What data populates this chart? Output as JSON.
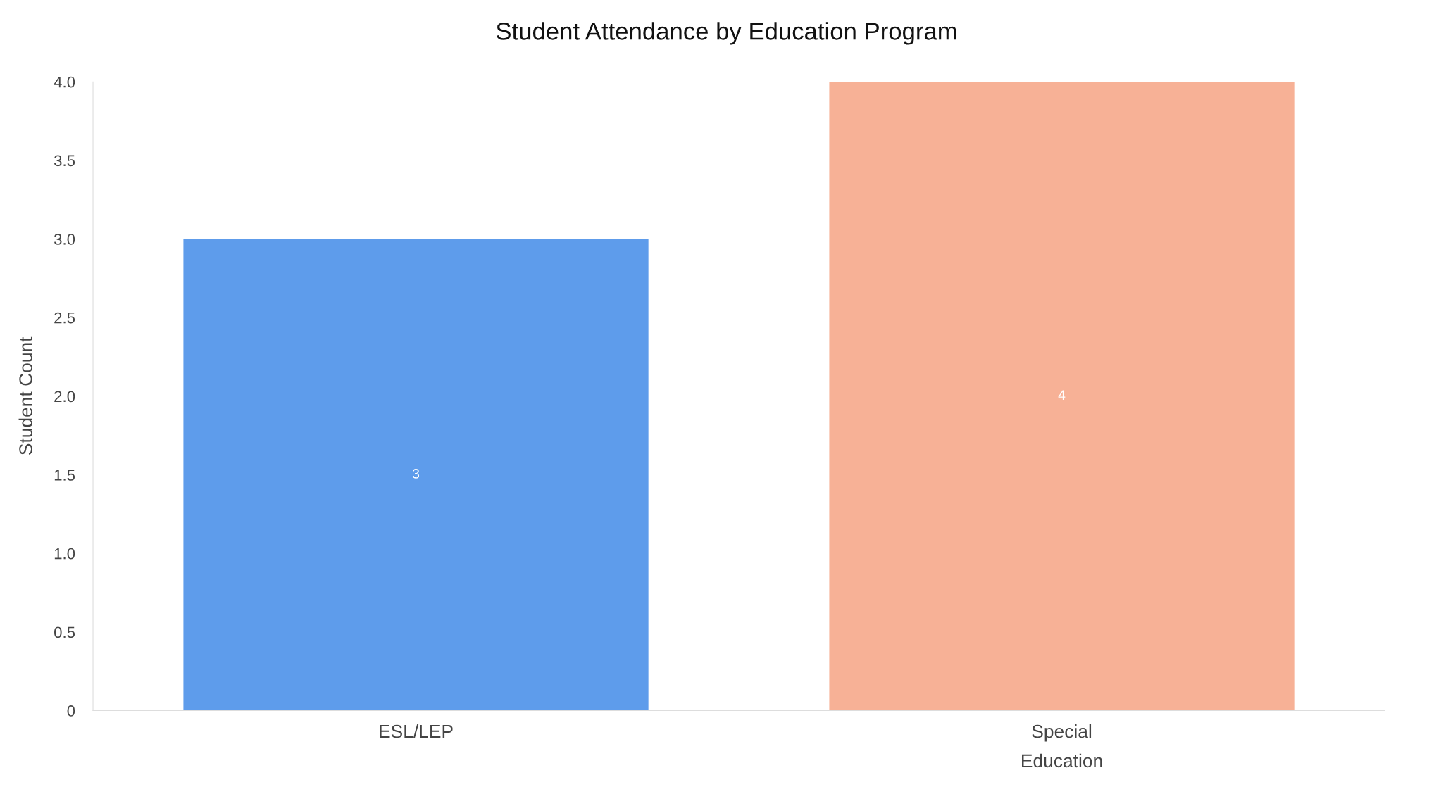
{
  "chart_data": {
    "type": "bar",
    "title": "Student Attendance by Education Program",
    "ylabel": "Student Count",
    "categories": [
      "ESL/LEP",
      "Special Education"
    ],
    "values": [
      3,
      4
    ],
    "colors": [
      "#5e9ceb",
      "#f7b196"
    ],
    "ylim": [
      0,
      4
    ],
    "yticks": [
      0,
      {
        "value": 0.5,
        "label": "0.5"
      },
      {
        "value": 1,
        "label": "1.0"
      },
      {
        "value": 1.5,
        "label": "1.5"
      },
      {
        "value": 2,
        "label": "2.0"
      },
      {
        "value": 2.5,
        "label": "2.5"
      },
      {
        "value": 3,
        "label": "3.0"
      },
      {
        "value": 3.5,
        "label": "3.5"
      },
      {
        "value": 4,
        "label": "4.0"
      }
    ],
    "data_labels": true,
    "grid": false
  }
}
